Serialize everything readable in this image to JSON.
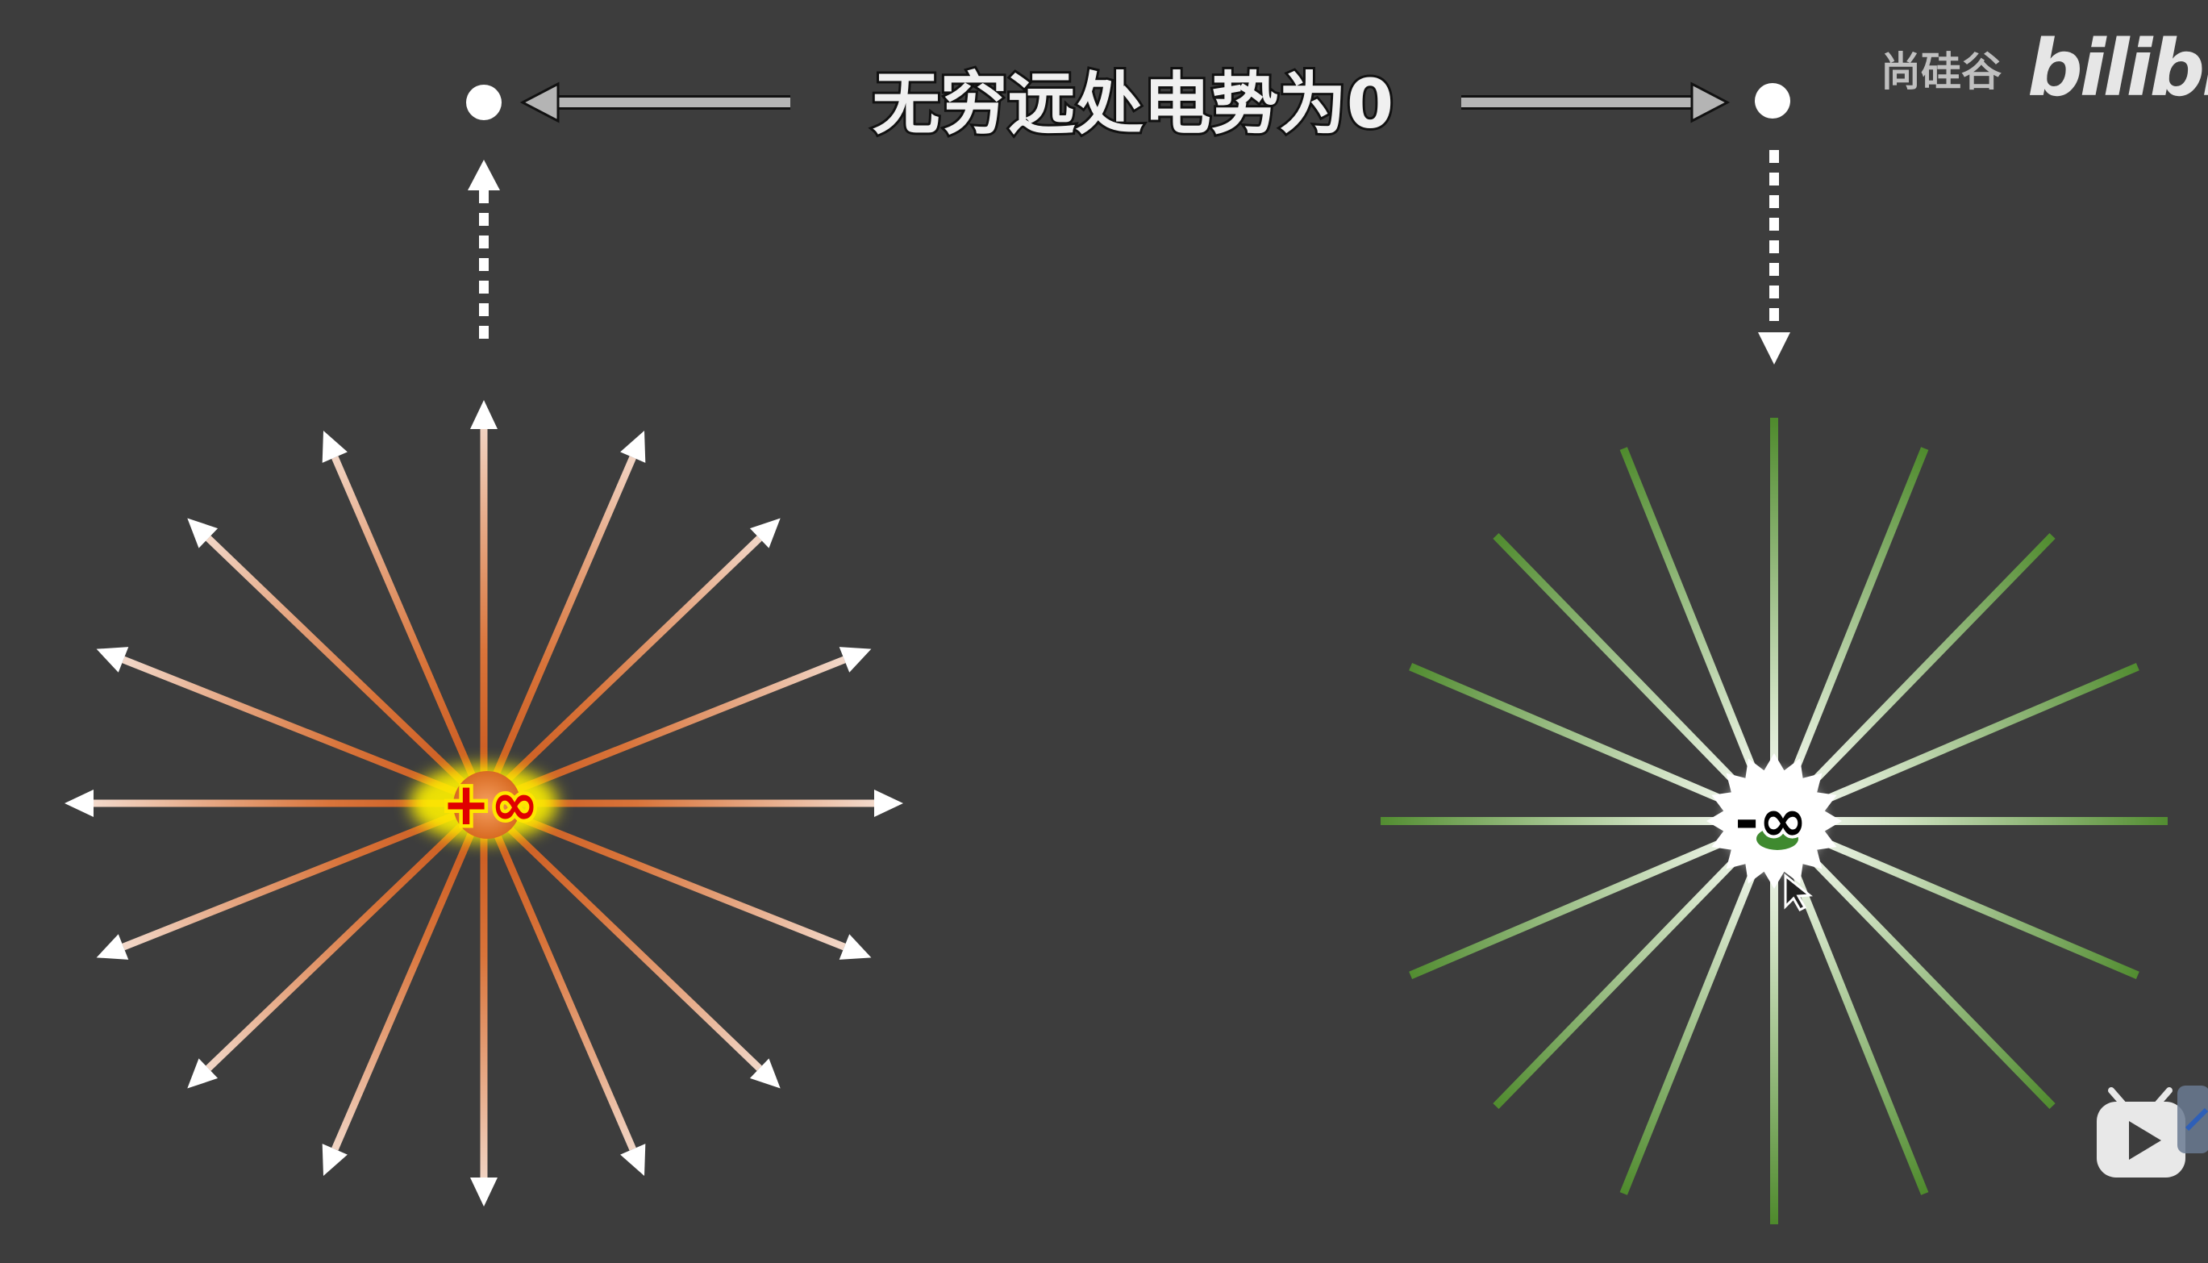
{
  "header": {
    "title": "无穷远处电势为0"
  },
  "positive_charge": {
    "label": "+∞",
    "line_count": 16,
    "gradient_inner": "#c8551a",
    "gradient_outer": "#f4e4dc",
    "core_color": "#e0782a"
  },
  "negative_charge": {
    "label": "-∞",
    "line_count": 16,
    "gradient_inner": "#ffffff",
    "gradient_outer": "#4e8a2c",
    "core_color": "#3f8a2f"
  },
  "watermark": {
    "brand_cn": "尚硅谷",
    "logo": "bilibili"
  },
  "colors": {
    "background": "#3d3d3d",
    "arrow": "#ffffff",
    "connector_arrow": "#b4b4b4"
  },
  "icons": {
    "top_left_point": "point-at-infinity-dot",
    "top_right_point": "point-at-infinity-dot",
    "tv_icon": "bilibili-tv-icon"
  }
}
